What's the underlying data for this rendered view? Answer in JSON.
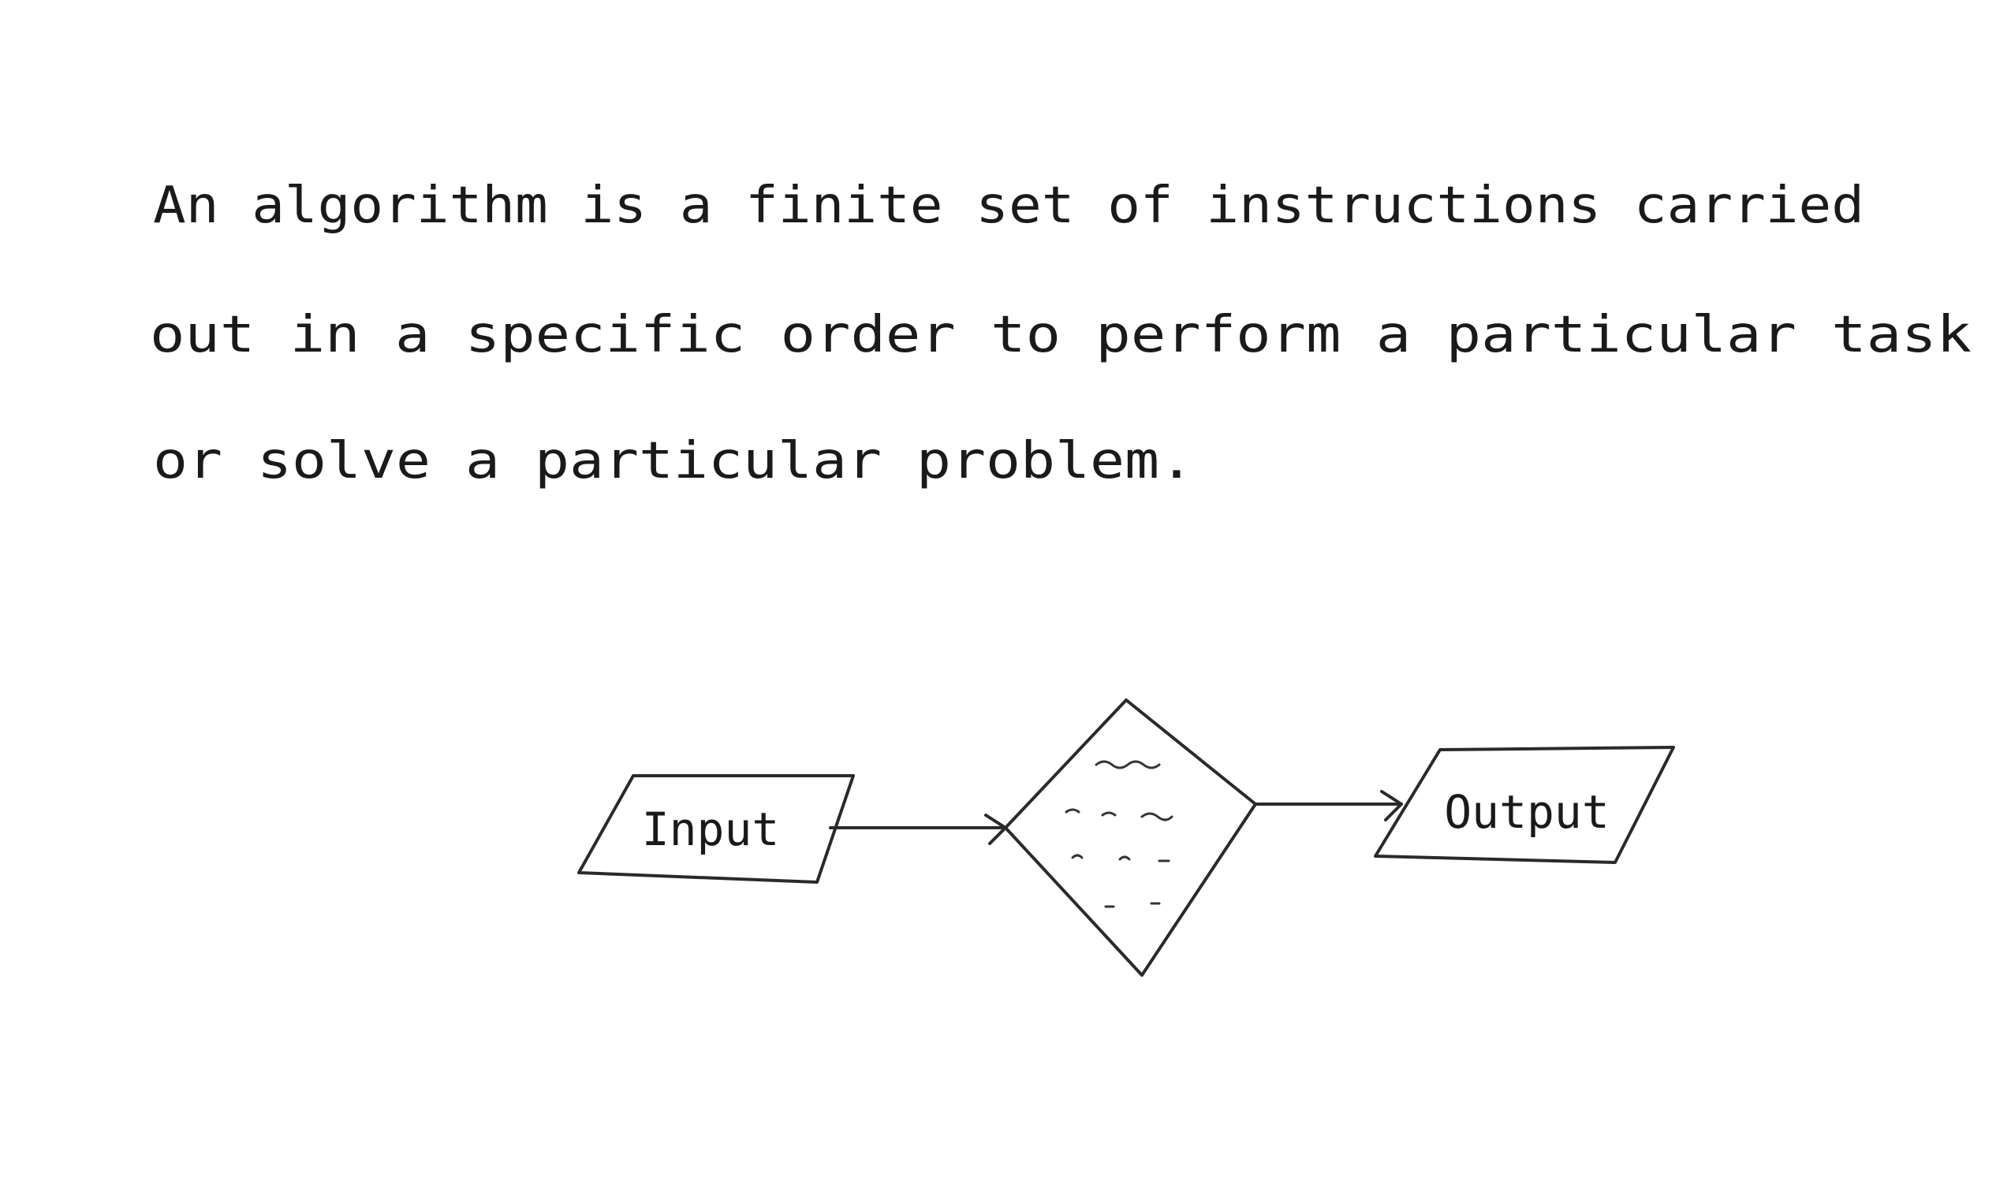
{
  "paragraph": {
    "lines": [
      "An algorithm is a finite set of instructions carried",
      "out in a specific order to perform a particular task",
      "or solve a particular problem."
    ]
  },
  "nodes": [
    {
      "label": "Input"
    },
    {
      "label": "Output"
    }
  ]
}
